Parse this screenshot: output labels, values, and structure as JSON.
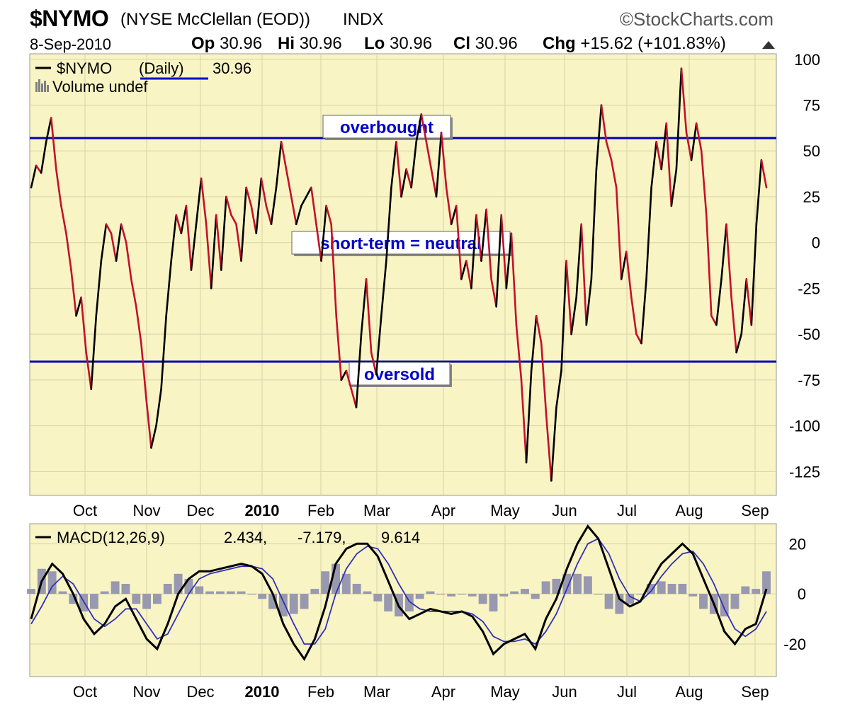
{
  "header": {
    "symbol": "$NYMO",
    "description": "(NYSE McClellan (EOD))",
    "exchange": "INDX",
    "brand": "©StockCharts.com",
    "date": "8-Sep-2010",
    "open_label": "Op",
    "open": "30.96",
    "high_label": "Hi",
    "high": "30.96",
    "low_label": "Lo",
    "low": "30.96",
    "close_label": "Cl",
    "close": "30.96",
    "change_label": "Chg",
    "change": "+15.62 (+101.83%)",
    "change_arrow_icon": "triangle-up-icon"
  },
  "legend": {
    "series": "$NYMO",
    "period": "(Daily)",
    "value": "30.96",
    "volume": "Volume undef",
    "macd_name": "MACD(12,26,9)",
    "macd_value": "2.434,",
    "signal_value": "-7.179,",
    "hist_value": "9.614"
  },
  "annotations": {
    "overbought": "overbought",
    "neutral": "short-term = neutral",
    "oversold": "oversold"
  },
  "colors": {
    "panel_bg": "#f8f4c4",
    "grid": "#d8d2a4",
    "up_line": "#000000",
    "down_line": "#c4102a",
    "level_line": "#0000b4",
    "signal_line": "#3030b8",
    "histogram": "#9898b0"
  },
  "chart_data": [
    {
      "type": "line",
      "title": "$NYMO (NYSE McClellan (EOD)) INDX",
      "x_labels": [
        "Oct",
        "Nov",
        "Dec",
        "2010",
        "Feb",
        "Mar",
        "Apr",
        "May",
        "Jun",
        "Jul",
        "Aug",
        "Sep"
      ],
      "y_ticks": [
        100,
        75,
        50,
        25,
        0,
        -25,
        -50,
        -75,
        -100,
        -125
      ],
      "ylim": [
        -138,
        103
      ],
      "reference_lines": {
        "overbought": 57,
        "oversold": -65
      },
      "series": [
        {
          "name": "$NYMO",
          "values": [
            30,
            42,
            38,
            55,
            68,
            40,
            20,
            5,
            -15,
            -40,
            -30,
            -60,
            -80,
            -40,
            -10,
            10,
            5,
            -10,
            10,
            0,
            -20,
            -35,
            -55,
            -85,
            -112,
            -100,
            -80,
            -40,
            -10,
            15,
            5,
            20,
            -15,
            10,
            35,
            10,
            -25,
            15,
            -15,
            25,
            15,
            10,
            -10,
            30,
            20,
            5,
            35,
            20,
            10,
            30,
            55,
            40,
            25,
            10,
            20,
            25,
            30,
            10,
            -10,
            20,
            10,
            -40,
            -75,
            -70,
            -80,
            -90,
            -50,
            -20,
            -60,
            -72,
            -40,
            -10,
            30,
            55,
            25,
            40,
            30,
            55,
            70,
            55,
            40,
            25,
            60,
            30,
            10,
            20,
            -20,
            -10,
            -25,
            15,
            -10,
            18,
            -20,
            -35,
            15,
            -25,
            5,
            -45,
            -75,
            -120,
            -70,
            -40,
            -55,
            -95,
            -130,
            -90,
            -70,
            -10,
            -50,
            -30,
            10,
            -45,
            -20,
            40,
            75,
            55,
            45,
            30,
            -20,
            -5,
            -30,
            -50,
            -55,
            -20,
            30,
            55,
            40,
            65,
            20,
            40,
            95,
            60,
            45,
            65,
            50,
            15,
            -40,
            -45,
            -20,
            10,
            -30,
            -60,
            -50,
            -20,
            -45,
            10,
            45,
            30
          ]
        }
      ]
    },
    {
      "type": "line",
      "title": "MACD(12,26,9)",
      "x_labels": [
        "Oct",
        "Nov",
        "Dec",
        "2010",
        "Feb",
        "Mar",
        "Apr",
        "May",
        "Jun",
        "Jul",
        "Aug",
        "Sep"
      ],
      "y_ticks": [
        20,
        0,
        -20
      ],
      "ylim": [
        -33,
        28
      ],
      "series": [
        {
          "name": "MACD",
          "values": [
            -10,
            5,
            12,
            8,
            0,
            -10,
            -16,
            -12,
            -5,
            -2,
            -10,
            -18,
            -22,
            -12,
            0,
            6,
            9,
            9,
            10,
            11,
            12,
            11,
            8,
            0,
            -12,
            -20,
            -26,
            -18,
            -5,
            12,
            18,
            20,
            20,
            15,
            5,
            -5,
            -10,
            -8,
            -6,
            -7,
            -8,
            -7,
            -9,
            -15,
            -24,
            -20,
            -18,
            -16,
            -22,
            -10,
            -2,
            10,
            20,
            27,
            22,
            10,
            -2,
            -5,
            -3,
            5,
            12,
            16,
            20,
            16,
            6,
            -4,
            -15,
            -20,
            -14,
            -12,
            2
          ]
        },
        {
          "name": "Signal",
          "values": [
            -12,
            -5,
            3,
            7,
            4,
            -3,
            -10,
            -13,
            -10,
            -6,
            -6,
            -12,
            -18,
            -16,
            -8,
            0,
            6,
            8,
            9,
            10,
            11,
            11,
            10,
            6,
            -3,
            -12,
            -20,
            -20,
            -14,
            0,
            10,
            16,
            19,
            18,
            12,
            4,
            -3,
            -6,
            -7,
            -7,
            -7,
            -7,
            -8,
            -11,
            -17,
            -19,
            -19,
            -18,
            -20,
            -15,
            -8,
            2,
            12,
            20,
            22,
            16,
            6,
            -1,
            -3,
            1,
            7,
            12,
            16,
            17,
            12,
            4,
            -6,
            -14,
            -17,
            -14,
            -7
          ]
        },
        {
          "name": "Histogram",
          "values": [
            2,
            10,
            9,
            1,
            -4,
            -7,
            -6,
            1,
            5,
            4,
            -4,
            -6,
            -4,
            4,
            8,
            6,
            3,
            1,
            1,
            1,
            1,
            0,
            -2,
            -6,
            -9,
            -8,
            -6,
            2,
            9,
            12,
            8,
            4,
            1,
            -3,
            -7,
            -9,
            -7,
            -2,
            1,
            0,
            -1,
            0,
            -1,
            -4,
            -7,
            -1,
            1,
            2,
            -2,
            5,
            6,
            8,
            8,
            7,
            0,
            -6,
            -8,
            -4,
            0,
            4,
            5,
            4,
            4,
            -1,
            -6,
            -8,
            -9,
            -6,
            3,
            2,
            9
          ]
        }
      ]
    }
  ]
}
